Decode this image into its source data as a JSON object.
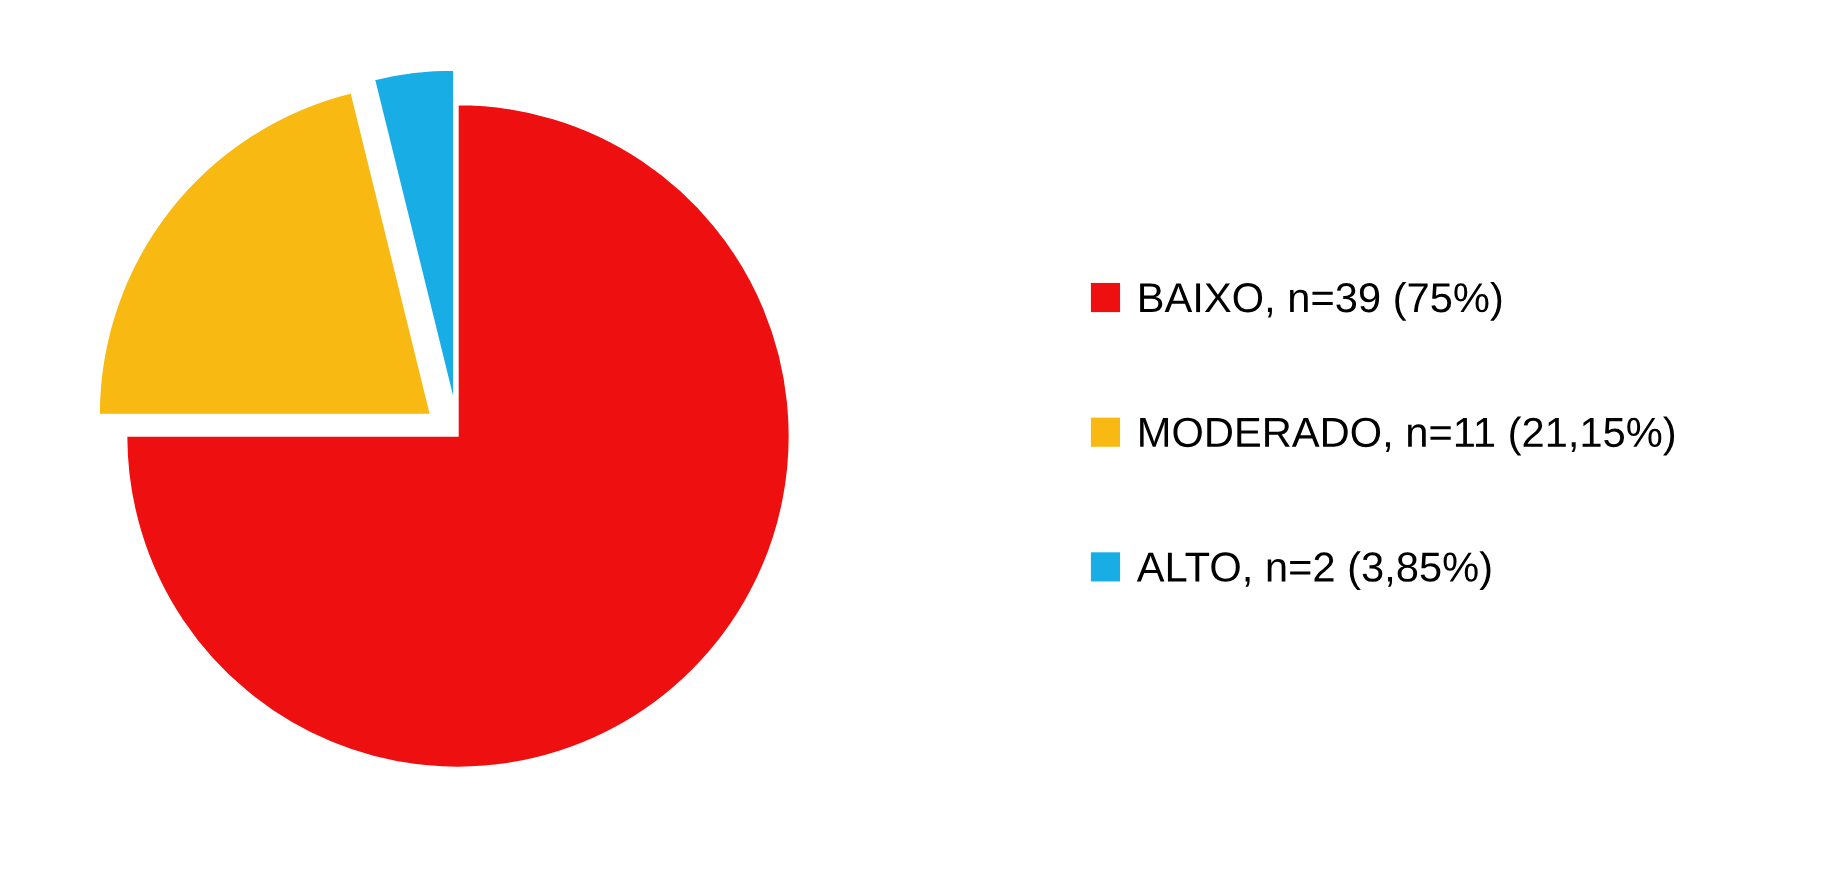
{
  "chart_data": {
    "type": "pie",
    "categories": [
      "BAIXO, n=39 (75%)",
      "MODERADO, n=11 (21,15%)",
      "ALTO, n=2 (3,85%)"
    ],
    "values": [
      39,
      11,
      2
    ],
    "colors": [
      "#ee1010",
      "#f7b912",
      "#19ade6"
    ],
    "legend": "right"
  }
}
